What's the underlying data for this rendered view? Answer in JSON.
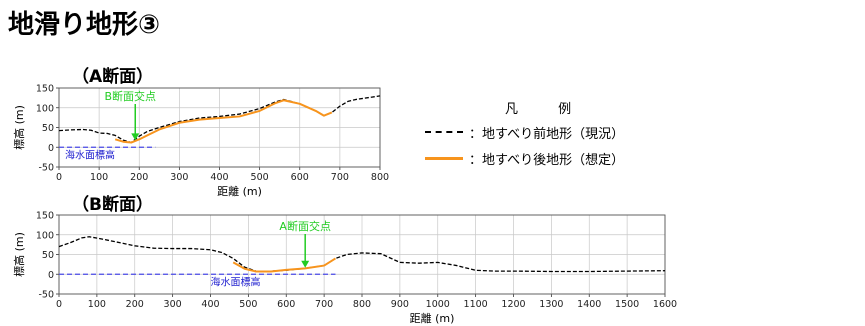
{
  "page": {
    "title": "地滑り地形③"
  },
  "sections": [
    {
      "heading": "（A断面）"
    },
    {
      "heading": "（B断面）"
    }
  ],
  "legend": {
    "title": "凡 例",
    "items": [
      {
        "label": "：地すべり前地形（現況）",
        "color": "#000000",
        "style": "dashed"
      },
      {
        "label": "：地すべり後地形（想定）",
        "color": "#f7941d",
        "style": "solid"
      }
    ]
  },
  "chart_data": [
    {
      "type": "line",
      "title": "（A断面）",
      "xlabel": "距離 (m)",
      "ylabel": "標高 (m)",
      "xlim": [
        0,
        800
      ],
      "ylim": [
        -50,
        150
      ],
      "xticks": [
        0,
        100,
        200,
        300,
        400,
        500,
        600,
        700,
        800
      ],
      "yticks": [
        -50,
        0,
        50,
        100,
        150
      ],
      "grid": true,
      "series": [
        {
          "name": "：地すべり前地形（現況）",
          "color": "#000000",
          "style": "dashed",
          "x": [
            0,
            30,
            60,
            80,
            100,
            120,
            140,
            160,
            180,
            200,
            220,
            250,
            300,
            350,
            400,
            450,
            500,
            540,
            560,
            600,
            640,
            660,
            680,
            700,
            720,
            740,
            760,
            780,
            800
          ],
          "y": [
            42,
            44,
            45,
            43,
            36,
            35,
            30,
            18,
            12,
            28,
            40,
            50,
            65,
            74,
            78,
            84,
            98,
            115,
            121,
            110,
            92,
            80,
            88,
            104,
            116,
            121,
            124,
            127,
            130
          ]
        },
        {
          "name": "：地すべり後地形（想定）",
          "color": "#f7941d",
          "style": "solid",
          "x": [
            140,
            160,
            180,
            200,
            220,
            250,
            300,
            350,
            400,
            450,
            500,
            540,
            560,
            600,
            640,
            660,
            680
          ],
          "y": [
            20,
            14,
            12,
            20,
            30,
            45,
            62,
            70,
            74,
            78,
            92,
            112,
            119,
            110,
            92,
            80,
            88
          ]
        },
        {
          "name": "海水面標高",
          "color": "#4a4ae6",
          "style": "dashed",
          "x": [
            0,
            240
          ],
          "y": [
            0,
            0
          ]
        }
      ],
      "annotations": [
        {
          "text": "B断面交点",
          "color": "#22cc22",
          "arrow_to": [
            190,
            15
          ]
        },
        {
          "text": "海水面標高",
          "color": "#1f1fcf"
        }
      ]
    },
    {
      "type": "line",
      "title": "（B断面）",
      "xlabel": "距離 (m)",
      "ylabel": "標高 (m)",
      "xlim": [
        0,
        1600
      ],
      "ylim": [
        -50,
        150
      ],
      "xticks": [
        0,
        100,
        200,
        300,
        400,
        500,
        600,
        700,
        800,
        900,
        1000,
        1100,
        1200,
        1300,
        1400,
        1500,
        1600
      ],
      "yticks": [
        -50,
        0,
        50,
        100,
        150
      ],
      "grid": true,
      "series": [
        {
          "name": "：地すべり前地形（現況）",
          "color": "#000000",
          "style": "dashed",
          "x": [
            0,
            30,
            60,
            80,
            120,
            160,
            200,
            250,
            300,
            350,
            400,
            430,
            460,
            490,
            520,
            560,
            600,
            650,
            700,
            730,
            760,
            800,
            850,
            900,
            950,
            1000,
            1050,
            1100,
            1150,
            1200,
            1300,
            1400,
            1500,
            1600
          ],
          "y": [
            70,
            80,
            92,
            95,
            88,
            80,
            72,
            66,
            65,
            65,
            62,
            55,
            40,
            18,
            8,
            8,
            10,
            15,
            22,
            40,
            50,
            54,
            52,
            30,
            28,
            30,
            22,
            10,
            8,
            8,
            7,
            7,
            8,
            9
          ]
        },
        {
          "name": "：地すべり後地形（想定）",
          "color": "#f7941d",
          "style": "solid",
          "x": [
            460,
            490,
            520,
            560,
            600,
            650,
            700,
            730
          ],
          "y": [
            30,
            14,
            7,
            7,
            11,
            15,
            22,
            40
          ]
        },
        {
          "name": "海水面標高",
          "color": "#4a4ae6",
          "style": "dashed",
          "x": [
            0,
            730
          ],
          "y": [
            0,
            0
          ]
        }
      ],
      "annotations": [
        {
          "text": "A断面交点",
          "color": "#22cc22",
          "arrow_to": [
            650,
            14
          ]
        },
        {
          "text": "海水面標高",
          "color": "#1f1fcf"
        }
      ]
    }
  ]
}
